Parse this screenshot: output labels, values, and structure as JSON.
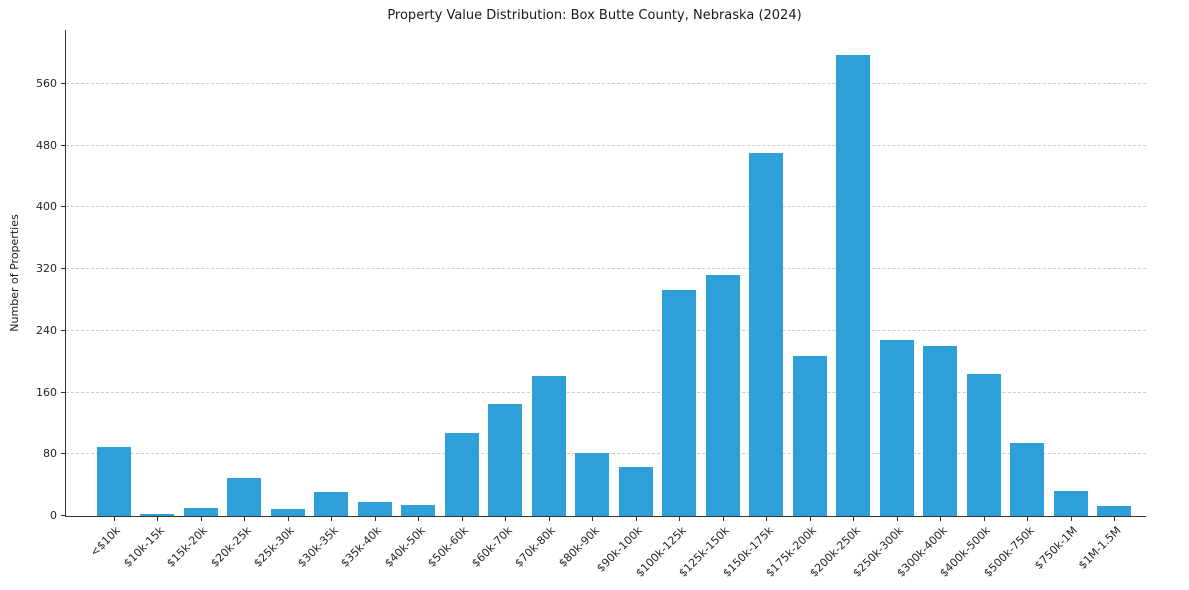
{
  "chart_data": {
    "type": "bar",
    "title": "Property Value Distribution: Box Butte County, Nebraska (2024)",
    "xlabel": "",
    "ylabel": "Number of Properties",
    "categories": [
      "<$10k",
      "$10k-15k",
      "$15k-20k",
      "$20k-25k",
      "$25k-30k",
      "$30k-35k",
      "$35k-40k",
      "$40k-50k",
      "$50k-60k",
      "$60k-70k",
      "$70k-80k",
      "$80k-90k",
      "$90k-100k",
      "$100k-125k",
      "$125k-150k",
      "$150k-175k",
      "$175k-200k",
      "$200k-250k",
      "$250k-300k",
      "$300k-400k",
      "$400k-500k",
      "$500k-750k",
      "$750k-1M",
      "$1M-1.5M"
    ],
    "values": [
      90,
      3,
      10,
      49,
      9,
      31,
      18,
      14,
      108,
      145,
      181,
      82,
      64,
      293,
      312,
      471,
      207,
      597,
      228,
      221,
      184,
      95,
      33,
      13
    ],
    "ylim": [
      0,
      630
    ],
    "yticks": [
      0,
      80,
      160,
      240,
      320,
      400,
      480,
      560
    ],
    "grid": "horizontal-dashed",
    "legend": "none",
    "bar_color": "#2e9fd9",
    "grid_color": "#cccccc",
    "axis_color": "#333333"
  }
}
